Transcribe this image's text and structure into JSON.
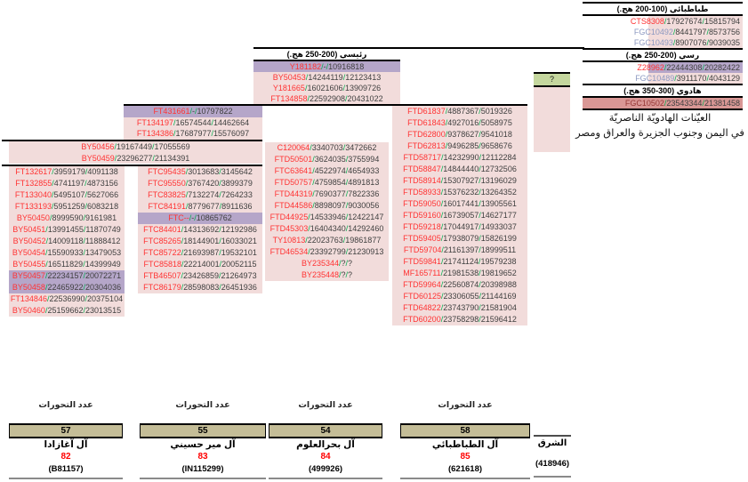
{
  "palette": {
    "pink": "#f2dcdb",
    "purple": "#b5a6c9",
    "dark_pink": "#d99795",
    "green_cell": "#c5d79e",
    "tan": "#c4bd97",
    "id_red": "#ff3333",
    "id_blue": "#8d99c1",
    "id_maroon": "#953735",
    "slash_green": "#00b050",
    "num_dark": "#3f3f3f"
  },
  "tree": {
    "col3_header": "رئيسي (200-250 هج.)",
    "unknown_cell": "?",
    "group_a_header_rows": [
      [
        "BY50456",
        "19167449",
        "17055569"
      ],
      [
        "BY50459",
        "23296277",
        "21134391"
      ]
    ],
    "col1_rows": [
      [
        "FT132617",
        "3959179",
        "4091138"
      ],
      [
        "FT132855",
        "4741197",
        "4873156"
      ],
      [
        "FT133040",
        "5495107",
        "5627066"
      ],
      [
        "FT133193",
        "5951259",
        "6083218"
      ],
      [
        "BY50450",
        "8999590",
        "9161981"
      ],
      [
        "BY50451",
        "13991455",
        "11870749"
      ],
      [
        "BY50452",
        "14009118",
        "11888412"
      ],
      [
        "BY50454",
        "15590933",
        "13479053"
      ],
      [
        "BY50455",
        "16511829",
        "14399949"
      ],
      [
        "BY50457",
        "22234157",
        "20072271",
        "v"
      ],
      [
        "BY50458",
        "22465922",
        "20304036",
        "v"
      ],
      [
        "FT134846",
        "22536990",
        "20375104"
      ],
      [
        "BY50460",
        "25159662",
        "23013515"
      ]
    ],
    "col2_top_rows": [
      [
        "FT431661",
        "-",
        "10797822",
        "v"
      ],
      [
        "FT134197",
        "16574544",
        "14462664"
      ],
      [
        "FT134386",
        "17687977",
        "15576097"
      ]
    ],
    "col2_rows": [
      [
        "FTC95435",
        "3013683",
        "3145642"
      ],
      [
        "FTC95550",
        "3767420",
        "3899379"
      ],
      [
        "FTC83825",
        "7132274",
        "7264233"
      ],
      [
        "FTC84191",
        "8779677",
        "8911636"
      ],
      [
        "FTC--",
        "-",
        "10865762",
        "v"
      ],
      [
        "FTC84401",
        "14313692",
        "12192986"
      ],
      [
        "FTC85265",
        "18144901",
        "16033021"
      ],
      [
        "FTC85722",
        "21693987",
        "19532101"
      ],
      [
        "FTC85818",
        "22214001",
        "20052115"
      ],
      [
        "FTB46507",
        "23426859",
        "21264973"
      ],
      [
        "FTC86179",
        "28598083",
        "26451936"
      ]
    ],
    "col3_top_rows": [
      [
        "Y181182",
        "-",
        "10916818",
        "v"
      ],
      [
        "BY50453",
        "14244119",
        "12123413"
      ],
      [
        "Y181665",
        "16021606",
        "13909726"
      ],
      [
        "FT134858",
        "22592908",
        "20431022"
      ]
    ],
    "col3_rows": [
      [
        "C120064",
        "3340703",
        "3472662"
      ],
      [
        "FTD50501",
        "3624035",
        "3755994"
      ],
      [
        "FTC63641",
        "4522974",
        "4654933"
      ],
      [
        "FTD50757",
        "4759854",
        "4891813"
      ],
      [
        "FTD44319",
        "7690377",
        "7822336"
      ],
      [
        "FTD44586",
        "8898097",
        "9030056"
      ],
      [
        "FTD44925",
        "14533946",
        "12422147"
      ],
      [
        "FTD45303",
        "16404340",
        "14292460"
      ],
      [
        "TY10813",
        "22023763",
        "19861877"
      ],
      [
        "FTD46534",
        "23392799",
        "21230913"
      ],
      [
        "BY235344",
        "?",
        "?"
      ],
      [
        "BY235448",
        "?",
        "?"
      ]
    ],
    "col4_rows": [
      [
        "FTD61837",
        "4887367",
        "5019326"
      ],
      [
        "FTD61843",
        "4927016",
        "5058975"
      ],
      [
        "FTD62800",
        "9378627",
        "9541018"
      ],
      [
        "FTD62813",
        "9496285",
        "9658676"
      ],
      [
        "FTD58717",
        "14232990",
        "12112284"
      ],
      [
        "FTD58847",
        "14844440",
        "12732506"
      ],
      [
        "FTD58914",
        "15307927",
        "13196029"
      ],
      [
        "FTD58933",
        "15376232",
        "13264352"
      ],
      [
        "FTD59050",
        "16017441",
        "13905561"
      ],
      [
        "FTD59160",
        "16739057",
        "14627177"
      ],
      [
        "FTD59218",
        "17044917",
        "14933037"
      ],
      [
        "FTD59405",
        "17938079",
        "15826199"
      ],
      [
        "FTD59704",
        "21161397",
        "18999511"
      ],
      [
        "FTD59841",
        "21741124",
        "19579238"
      ],
      [
        "MF165711",
        "21981538",
        "19819652"
      ],
      [
        "FTD59964",
        "22560874",
        "20398988"
      ],
      [
        "FTD60125",
        "23306055",
        "21144169"
      ],
      [
        "FTD64822",
        "23743790",
        "21581904"
      ],
      [
        "FTD60200",
        "23758298",
        "21596412"
      ]
    ]
  },
  "lineage_box": {
    "items": [
      {
        "t": "h",
        "label": "طباطبائي (100-200 هج.)"
      },
      {
        "t": "r",
        "row": [
          "CTS8308",
          "17927674",
          "15815794",
          "p",
          "r"
        ],
        "fill": "partial"
      },
      {
        "t": "r",
        "row": [
          "FGC10492",
          "8441797",
          "8573756",
          "p",
          "b"
        ],
        "fill": "partial"
      },
      {
        "t": "r",
        "row": [
          "FGC10493",
          "8907076",
          "9039035",
          "p",
          "b"
        ],
        "fill": "partial"
      },
      {
        "t": "h",
        "label": "رسي (200-250 هج.)"
      },
      {
        "t": "r",
        "row": [
          "Z28962",
          "22444308",
          "20282422",
          "v",
          "r"
        ],
        "fill": "partial"
      },
      {
        "t": "r",
        "row": [
          "FGC10489",
          "3911170",
          "4043129",
          "p",
          "b"
        ],
        "fill": "partial"
      },
      {
        "t": "h",
        "label": "هادوي (300-350 هج.)"
      },
      {
        "t": "r",
        "row": [
          "FGC10502",
          "23543344",
          "21381458",
          "d",
          "m"
        ],
        "fill": "full",
        "bottom_border": true
      }
    ],
    "caption_line1": "العيّنات الهادويّة الناصريّة",
    "caption_line2": "في اليمن وجنوب الجزيرة والعراق ومصر"
  },
  "bottom": {
    "mutations_label": "عدد التحورات",
    "groups": [
      {
        "mutations": "57",
        "name": "آل آغازادا",
        "count": "82",
        "kit": "(B81157)"
      },
      {
        "mutations": "55",
        "name": "آل مير حسيني",
        "count": "83",
        "kit": "(IN115299)"
      },
      {
        "mutations": "54",
        "name": "آل بحرالعلوم",
        "count": "84",
        "kit": "(499926)"
      },
      {
        "mutations": "58",
        "name": "آل الطباطبائي",
        "count": "85",
        "kit": "(621618)"
      }
    ],
    "east": {
      "name": "الشرق",
      "kit": "(418946)"
    }
  }
}
